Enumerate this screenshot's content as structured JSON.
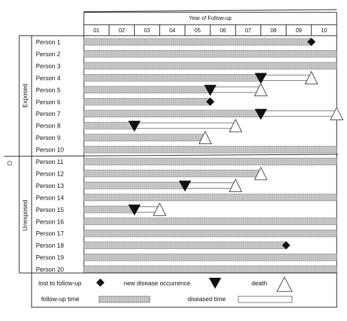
{
  "header": {
    "title": "Year of Follow-up"
  },
  "years": [
    "01",
    "02",
    "03",
    "04",
    "05",
    "06",
    "07",
    "08",
    "09",
    "10"
  ],
  "groups": [
    {
      "label": "Exposed",
      "first_row": 0,
      "last_row": 9
    },
    {
      "label": "Unexposed",
      "first_row": 10,
      "last_row": 19
    }
  ],
  "persons": [
    {
      "label": "Person 1",
      "followup_end": 9.0,
      "diseased_end": null,
      "disease_onset": null,
      "death": null,
      "lost": 9.0
    },
    {
      "label": "Person 2",
      "followup_end": 10.0,
      "diseased_end": null,
      "disease_onset": null,
      "death": null,
      "lost": null
    },
    {
      "label": "Person 3",
      "followup_end": 10.0,
      "diseased_end": null,
      "disease_onset": null,
      "death": null,
      "lost": null
    },
    {
      "label": "Person 4",
      "followup_end": 7.0,
      "diseased_end": 9.0,
      "disease_onset": 7.0,
      "death": 9.0,
      "lost": null
    },
    {
      "label": "Person 5",
      "followup_end": 5.0,
      "diseased_end": 7.0,
      "disease_onset": 5.0,
      "death": 7.0,
      "lost": null
    },
    {
      "label": "Person 6",
      "followup_end": 5.0,
      "diseased_end": null,
      "disease_onset": null,
      "death": null,
      "lost": 5.0
    },
    {
      "label": "Person 7",
      "followup_end": 7.0,
      "diseased_end": 10.0,
      "disease_onset": 7.0,
      "death": 10.0,
      "lost": null
    },
    {
      "label": "Person 8",
      "followup_end": 2.0,
      "diseased_end": 6.0,
      "disease_onset": 2.0,
      "death": 6.0,
      "lost": null
    },
    {
      "label": "Person 9",
      "followup_end": 4.8,
      "diseased_end": null,
      "disease_onset": null,
      "death": 4.8,
      "lost": null
    },
    {
      "label": "Person 10",
      "followup_end": 10.0,
      "diseased_end": null,
      "disease_onset": null,
      "death": null,
      "lost": null
    },
    {
      "label": "Person 11",
      "followup_end": 10.0,
      "diseased_end": null,
      "disease_onset": null,
      "death": null,
      "lost": null
    },
    {
      "label": "Person 12",
      "followup_end": 7.0,
      "diseased_end": null,
      "disease_onset": null,
      "death": 7.0,
      "lost": null
    },
    {
      "label": "Person 13",
      "followup_end": 4.0,
      "diseased_end": 6.0,
      "disease_onset": 4.0,
      "death": 6.0,
      "lost": null
    },
    {
      "label": "Person 14",
      "followup_end": 10.0,
      "diseased_end": null,
      "disease_onset": null,
      "death": null,
      "lost": null
    },
    {
      "label": "Person 15",
      "followup_end": 2.0,
      "diseased_end": 3.0,
      "disease_onset": 2.0,
      "death": 3.0,
      "lost": null
    },
    {
      "label": "Person 16",
      "followup_end": 10.0,
      "diseased_end": null,
      "disease_onset": null,
      "death": null,
      "lost": null
    },
    {
      "label": "Person 17",
      "followup_end": 10.0,
      "diseased_end": null,
      "disease_onset": null,
      "death": null,
      "lost": null
    },
    {
      "label": "Person 18",
      "followup_end": 8.0,
      "diseased_end": null,
      "disease_onset": null,
      "death": null,
      "lost": 8.0
    },
    {
      "label": "Person 19",
      "followup_end": 10.0,
      "diseased_end": null,
      "disease_onset": null,
      "death": null,
      "lost": null
    },
    {
      "label": "Person 20",
      "followup_end": 10.0,
      "diseased_end": null,
      "disease_onset": null,
      "death": null,
      "lost": null
    }
  ],
  "legend": {
    "lost": "lost to follow-up",
    "disease": "new disease occurrence",
    "death": "death",
    "followup": "follow-up time",
    "diseased": "diseased time"
  },
  "colors": {
    "followup_fill": "#c4c4c4",
    "followup_stroke": "#7a7a7a",
    "marker": "#111111"
  }
}
